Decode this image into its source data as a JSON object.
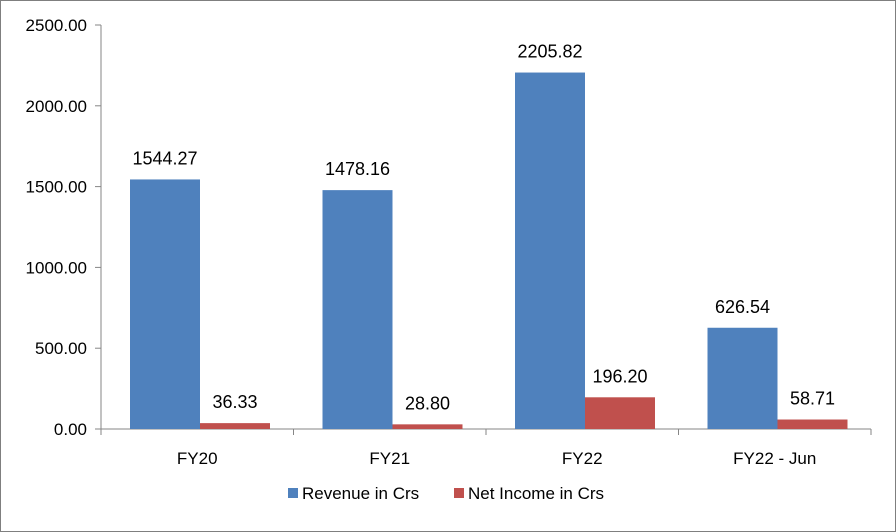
{
  "chart_data": {
    "type": "bar",
    "categories": [
      "FY20",
      "FY21",
      "FY22",
      "FY22 - Jun"
    ],
    "series": [
      {
        "name": "Revenue in Crs",
        "color": "#4f81bd",
        "values": [
          1544.27,
          1478.16,
          2205.82,
          626.54
        ],
        "labels": [
          "1544.27",
          "1478.16",
          "2205.82",
          "626.54"
        ]
      },
      {
        "name": "Net Income in Crs",
        "color": "#c0504d",
        "values": [
          36.33,
          28.8,
          196.2,
          58.71
        ],
        "labels": [
          "36.33",
          "28.80",
          "196.20",
          "58.71"
        ]
      }
    ],
    "y_ticks": [
      "0.00",
      "500.00",
      "1000.00",
      "1500.00",
      "2000.00",
      "2500.00"
    ],
    "ylim": [
      0,
      2500
    ],
    "title": "",
    "xlabel": "",
    "ylabel": "",
    "grid": false,
    "legend_position": "bottom"
  }
}
